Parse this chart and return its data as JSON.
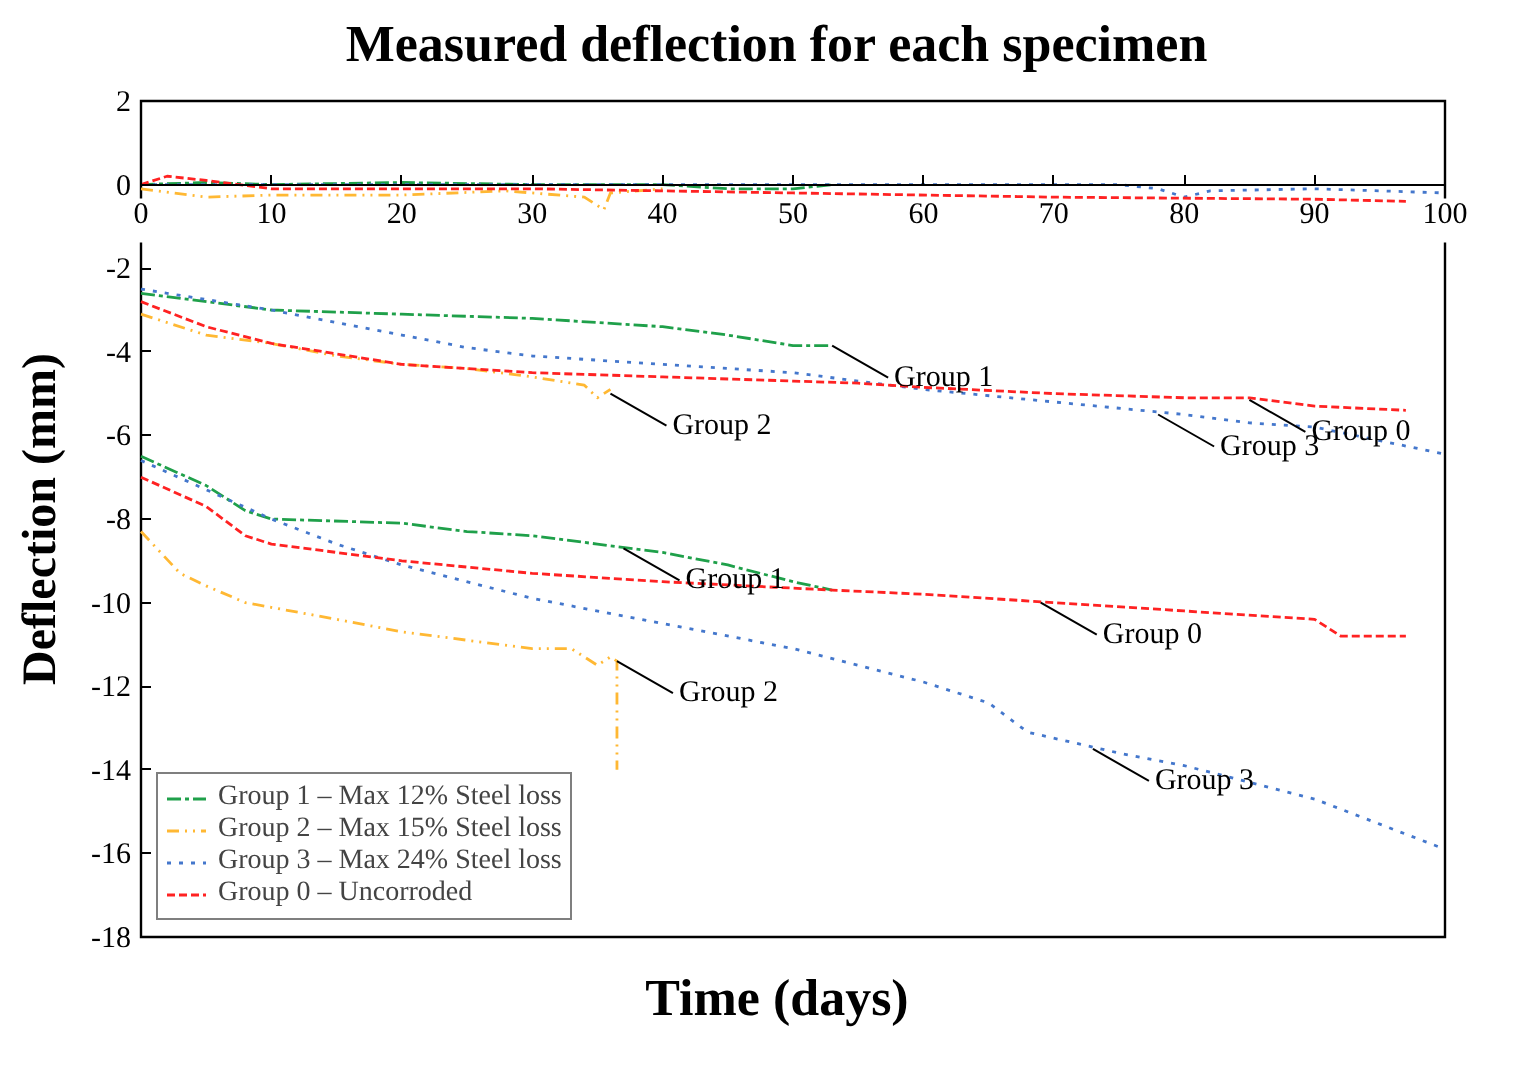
{
  "chart_data": {
    "type": "line",
    "title": "Measured deflection for each specimen",
    "xlabel": "Time (days)",
    "ylabel": "Deflection (mm)",
    "xlim": [
      0,
      100
    ],
    "xticks": [
      0,
      10,
      20,
      30,
      40,
      50,
      60,
      70,
      80,
      90,
      100
    ],
    "ylim": [
      -18,
      2
    ],
    "yticks": [
      2,
      0,
      -2,
      -4,
      -6,
      -8,
      -10,
      -12,
      -14,
      -16,
      -18
    ],
    "grid": false,
    "legend": "bottom left",
    "marker": "none",
    "series": [
      {
        "name": "Group 1 – Max 12% Steel loss",
        "color": "#1fa04a",
        "line_style": "dashdot",
        "x": [
          0,
          5,
          10,
          20,
          30,
          40,
          45,
          50,
          53
        ],
        "values": [
          0,
          0.05,
          0,
          0.05,
          0,
          0,
          -0.1,
          -0.1,
          0
        ]
      },
      {
        "name": "Group 2 – Max 15% Steel loss",
        "color": "#ffb833",
        "line_style": "dashdotdot",
        "x": [
          0,
          5,
          10,
          20,
          28,
          34,
          35.5,
          36,
          40
        ],
        "values": [
          -0.1,
          -0.3,
          -0.25,
          -0.25,
          -0.15,
          -0.3,
          -0.6,
          -0.2,
          -0.1
        ]
      },
      {
        "name": "Group 3 – Max 24% Steel loss",
        "color": "#4477cc",
        "line_style": "dotted",
        "x": [
          0,
          20,
          40,
          60,
          75,
          78,
          80,
          82,
          90,
          100
        ],
        "values": [
          0,
          0,
          0,
          0,
          0,
          -0.1,
          -0.3,
          -0.15,
          -0.1,
          -0.2
        ]
      },
      {
        "name": "Group 0 – Uncorroded",
        "color": "#ff2222",
        "line_style": "dashed",
        "x": [
          0,
          2,
          5,
          10,
          20,
          30,
          50,
          70,
          90,
          97
        ],
        "values": [
          0,
          0.2,
          0.1,
          -0.1,
          -0.1,
          -0.1,
          -0.2,
          -0.3,
          -0.35,
          -0.4
        ]
      },
      {
        "color": "#1fa04a",
        "line_style": "dashdot",
        "x": [
          0,
          10,
          20,
          30,
          35,
          40,
          45,
          50,
          53
        ],
        "values": [
          -2.6,
          -3.0,
          -3.1,
          -3.2,
          -3.3,
          -3.4,
          -3.6,
          -3.85,
          -3.85
        ]
      },
      {
        "color": "#ffb833",
        "line_style": "dashdotdot",
        "x": [
          0,
          5,
          10,
          15,
          20,
          25,
          30,
          34,
          35,
          36
        ],
        "values": [
          -3.1,
          -3.6,
          -3.8,
          -4.1,
          -4.3,
          -4.4,
          -4.6,
          -4.8,
          -5.1,
          -4.9
        ]
      },
      {
        "color": "#4477cc",
        "line_style": "dotted",
        "x": [
          0,
          10,
          20,
          25,
          30,
          40,
          50,
          55,
          60,
          70,
          80,
          85,
          90,
          100
        ],
        "values": [
          -2.5,
          -3.0,
          -3.6,
          -3.9,
          -4.1,
          -4.3,
          -4.5,
          -4.7,
          -4.9,
          -5.2,
          -5.5,
          -5.7,
          -5.8,
          -6.45
        ]
      },
      {
        "color": "#ff2222",
        "line_style": "dashed",
        "x": [
          0,
          5,
          10,
          20,
          30,
          40,
          50,
          55,
          60,
          70,
          80,
          85,
          90,
          97
        ],
        "values": [
          -2.8,
          -3.4,
          -3.8,
          -4.3,
          -4.5,
          -4.6,
          -4.7,
          -4.75,
          -4.85,
          -5.0,
          -5.1,
          -5.1,
          -5.3,
          -5.4
        ]
      },
      {
        "color": "#1fa04a",
        "line_style": "dashdot",
        "x": [
          0,
          5,
          8,
          10,
          20,
          25,
          30,
          35,
          40,
          45,
          50,
          53
        ],
        "values": [
          -6.5,
          -7.2,
          -7.8,
          -8.0,
          -8.1,
          -8.3,
          -8.4,
          -8.6,
          -8.8,
          -9.1,
          -9.5,
          -9.7
        ]
      },
      {
        "color": "#ffb833",
        "line_style": "dashdotdot",
        "x": [
          0,
          3,
          5,
          8,
          15,
          20,
          25,
          30,
          33,
          35,
          36,
          36.5,
          36.5
        ],
        "values": [
          -8.3,
          -9.3,
          -9.6,
          -10.0,
          -10.4,
          -10.7,
          -10.9,
          -11.1,
          -11.1,
          -11.5,
          -11.3,
          -11.4,
          -14.0
        ]
      },
      {
        "color": "#4477cc",
        "line_style": "dotted",
        "x": [
          0,
          5,
          10,
          15,
          20,
          30,
          40,
          50,
          60,
          65,
          68,
          75,
          80,
          85,
          90,
          95,
          100
        ],
        "values": [
          -6.6,
          -7.3,
          -8.0,
          -8.6,
          -9.1,
          -9.9,
          -10.5,
          -11.1,
          -11.9,
          -12.4,
          -13.1,
          -13.6,
          -13.9,
          -14.3,
          -14.7,
          -15.3,
          -15.9
        ]
      },
      {
        "color": "#ff2222",
        "line_style": "dashed",
        "x": [
          0,
          5,
          8,
          10,
          15,
          20,
          30,
          40,
          53,
          60,
          70,
          80,
          90,
          92,
          97
        ],
        "values": [
          -7.0,
          -7.7,
          -8.4,
          -8.6,
          -8.8,
          -9.0,
          -9.3,
          -9.5,
          -9.7,
          -9.8,
          -10.0,
          -10.2,
          -10.4,
          -10.8,
          -10.8
        ]
      }
    ],
    "annotations": [
      {
        "text": "Group 1",
        "x": 53,
        "y": -3.85
      },
      {
        "text": "Group 2",
        "x": 36,
        "y": -5.0
      },
      {
        "text": "Group 0",
        "x": 85,
        "y": -5.15
      },
      {
        "text": "Group 3",
        "x": 78,
        "y": -5.5
      },
      {
        "text": "Group 1",
        "x": 37,
        "y": -8.7
      },
      {
        "text": "Group 2",
        "x": 36.5,
        "y": -11.4
      },
      {
        "text": "Group 0",
        "x": 69,
        "y": -10.0
      },
      {
        "text": "Group 3",
        "x": 73,
        "y": -13.5
      }
    ]
  }
}
